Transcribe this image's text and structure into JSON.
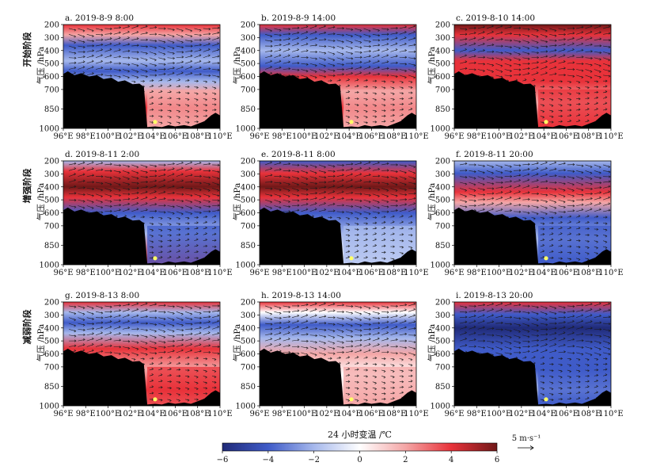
{
  "chart_data": {
    "type": "heatmap",
    "title": "",
    "colorbar": {
      "label": "24 小时变温 /℃",
      "vmin": -6,
      "vmax": 6,
      "ticks": [
        "−6",
        "−4",
        "−2",
        "0",
        "2",
        "4",
        "6"
      ],
      "tick_values": [
        -6,
        -4,
        -2,
        0,
        2,
        4,
        6
      ],
      "colors": [
        "#202a78",
        "#3f5bc8",
        "#a6b8ec",
        "#ffffff",
        "#f4a6a6",
        "#e8323a",
        "#701818"
      ]
    },
    "vector_reference": {
      "label": "5 m·s⁻¹",
      "value": 5
    },
    "x_axis": {
      "ticks": [
        "96°E",
        "98°E",
        "100°E",
        "102°E",
        "104°E",
        "106°E",
        "108°E",
        "110°E"
      ],
      "tick_values": [
        96,
        98,
        100,
        102,
        104,
        106,
        108,
        110
      ],
      "range": [
        96,
        110
      ]
    },
    "y_axis": {
      "label": "气压 /hPa",
      "ticks": [
        "200",
        "300",
        "400",
        "500",
        "600",
        "700",
        "850",
        "1000"
      ],
      "tick_values": [
        200,
        300,
        400,
        500,
        600,
        700,
        850,
        1000
      ],
      "range": [
        200,
        1000
      ],
      "reversed": true
    },
    "marker": {
      "lon": 104.2,
      "pressure": 950,
      "color": "#ffff66"
    },
    "stages": [
      {
        "row": 0,
        "label": "开始阶段"
      },
      {
        "row": 1,
        "label": "增强阶段"
      },
      {
        "row": 2,
        "label": "减弱阶段"
      }
    ],
    "panels": [
      {
        "title": "a. 2019-8-9 8:00"
      },
      {
        "title": "b. 2019-8-9 14:00"
      },
      {
        "title": "c. 2019-8-10 14:00"
      },
      {
        "title": "d. 2019-8-11 2:00"
      },
      {
        "title": "e. 2019-8-11 8:00"
      },
      {
        "title": "f. 2019-8-11 20:00"
      },
      {
        "title": "g. 2019-8-13 8:00"
      },
      {
        "title": "h. 2019-8-13 14:00"
      },
      {
        "title": "i. 2019-8-13 20:00"
      }
    ]
  }
}
